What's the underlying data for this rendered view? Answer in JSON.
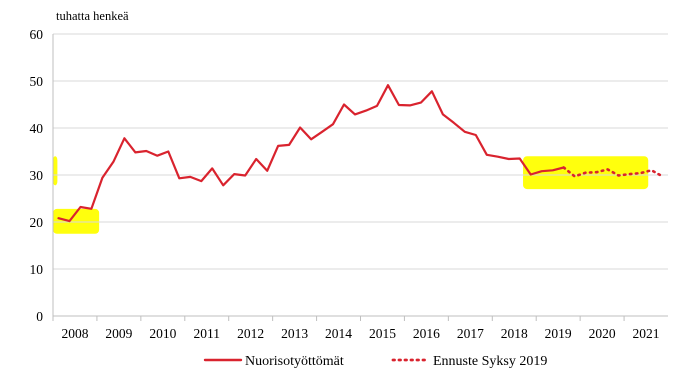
{
  "chart_data": {
    "type": "line",
    "title": "",
    "ylabel": "tuhatta henkeä",
    "xlabel": "",
    "ylim": [
      0,
      60
    ],
    "yticks": [
      "0",
      "10",
      "20",
      "30",
      "40",
      "50",
      "60"
    ],
    "xlim": [
      2007.5,
      2021.5
    ],
    "xtick_labels": [
      "2008",
      "2009",
      "2010",
      "2011",
      "2012",
      "2013",
      "2014",
      "2015",
      "2016",
      "2017",
      "2018",
      "2019",
      "2020",
      "2021"
    ],
    "grid": "horizontal",
    "legend_position": "bottom",
    "series": [
      {
        "name": "Nuorisotyöttömät",
        "style": "solid",
        "color": "#d9232e",
        "points": [
          [
            2007.625,
            20.8
          ],
          [
            2007.875,
            20.2
          ],
          [
            2008.125,
            23.2
          ],
          [
            2008.375,
            22.8
          ],
          [
            2008.625,
            29.4
          ],
          [
            2008.875,
            32.8
          ],
          [
            2009.125,
            37.8
          ],
          [
            2009.375,
            34.8
          ],
          [
            2009.625,
            35.1
          ],
          [
            2009.875,
            34.1
          ],
          [
            2010.125,
            35.0
          ],
          [
            2010.375,
            29.3
          ],
          [
            2010.625,
            29.6
          ],
          [
            2010.875,
            28.7
          ],
          [
            2011.125,
            31.4
          ],
          [
            2011.375,
            27.8
          ],
          [
            2011.625,
            30.2
          ],
          [
            2011.875,
            29.9
          ],
          [
            2012.125,
            33.4
          ],
          [
            2012.375,
            30.9
          ],
          [
            2012.625,
            36.2
          ],
          [
            2012.875,
            36.4
          ],
          [
            2013.125,
            40.1
          ],
          [
            2013.375,
            37.6
          ],
          [
            2013.625,
            39.2
          ],
          [
            2013.875,
            40.8
          ],
          [
            2014.125,
            45.0
          ],
          [
            2014.375,
            42.9
          ],
          [
            2014.625,
            43.7
          ],
          [
            2014.875,
            44.7
          ],
          [
            2015.125,
            49.1
          ],
          [
            2015.375,
            44.9
          ],
          [
            2015.625,
            44.8
          ],
          [
            2015.875,
            45.4
          ],
          [
            2016.125,
            47.8
          ],
          [
            2016.375,
            42.9
          ],
          [
            2016.625,
            41.1
          ],
          [
            2016.875,
            39.2
          ],
          [
            2017.125,
            38.5
          ],
          [
            2017.375,
            34.3
          ],
          [
            2017.625,
            33.9
          ],
          [
            2017.875,
            33.4
          ],
          [
            2018.125,
            33.5
          ],
          [
            2018.375,
            30.1
          ],
          [
            2018.625,
            30.8
          ],
          [
            2018.875,
            31.0
          ],
          [
            2019.125,
            31.6
          ]
        ]
      },
      {
        "name": "Ennuste Syksy 2019",
        "style": "dotted",
        "color": "#d9232e",
        "points": [
          [
            2019.125,
            31.6
          ],
          [
            2019.375,
            29.7
          ],
          [
            2019.625,
            30.5
          ],
          [
            2019.875,
            30.6
          ],
          [
            2020.125,
            31.2
          ],
          [
            2020.375,
            29.9
          ],
          [
            2020.625,
            30.2
          ],
          [
            2020.875,
            30.4
          ],
          [
            2021.125,
            31.0
          ],
          [
            2021.375,
            29.7
          ]
        ]
      }
    ],
    "highlights": [
      {
        "color": "#ffff00",
        "x": [
          2007.5,
          2008.55
        ],
        "y": [
          17.5,
          22.8
        ]
      },
      {
        "color": "#ffff00",
        "x": [
          2007.5,
          2007.6
        ],
        "y": [
          27.8,
          34.0
        ]
      },
      {
        "color": "#ffff00",
        "x": [
          2018.2,
          2021.05
        ],
        "y": [
          27.0,
          34.0
        ]
      }
    ]
  },
  "colors": {
    "series": "#d9232e",
    "highlight": "#ffff00",
    "grid": "#d9d9d9"
  }
}
